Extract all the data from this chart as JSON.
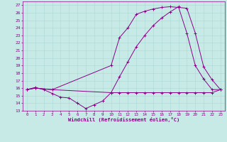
{
  "xlabel": "Windchill (Refroidissement éolien,°C)",
  "bg_color": "#c8eae6",
  "line_color": "#880088",
  "grid_color": "#aad8d4",
  "xlim": [
    -0.5,
    23.5
  ],
  "ylim": [
    13,
    27.5
  ],
  "xticks": [
    0,
    1,
    2,
    3,
    4,
    5,
    6,
    7,
    8,
    9,
    10,
    11,
    12,
    13,
    14,
    15,
    16,
    17,
    18,
    19,
    20,
    21,
    22,
    23
  ],
  "yticks": [
    13,
    14,
    15,
    16,
    17,
    18,
    19,
    20,
    21,
    22,
    23,
    24,
    25,
    26,
    27
  ],
  "series1_x": [
    0,
    1,
    2,
    3,
    4,
    5,
    6,
    7,
    8,
    9,
    10,
    11,
    12,
    13,
    14,
    15,
    16,
    17,
    18,
    19,
    20,
    21,
    22,
    23
  ],
  "series1_y": [
    15.8,
    16.1,
    15.8,
    15.3,
    14.8,
    14.7,
    14.0,
    13.3,
    13.8,
    14.3,
    15.4,
    15.4,
    15.4,
    15.4,
    15.4,
    15.4,
    15.4,
    15.4,
    15.4,
    15.4,
    15.4,
    15.4,
    15.4,
    15.8
  ],
  "series2_x": [
    0,
    1,
    3,
    10,
    11,
    12,
    13,
    14,
    15,
    16,
    17,
    18,
    19,
    20,
    21,
    22,
    23
  ],
  "series2_y": [
    15.8,
    16.0,
    15.8,
    19.0,
    22.7,
    24.0,
    25.8,
    26.2,
    26.5,
    26.7,
    26.8,
    26.7,
    26.6,
    23.3,
    18.8,
    17.1,
    15.8
  ],
  "series3_x": [
    0,
    1,
    3,
    10,
    11,
    12,
    13,
    14,
    15,
    16,
    17,
    18,
    19,
    20,
    21,
    22,
    23
  ],
  "series3_y": [
    15.8,
    16.0,
    15.8,
    15.4,
    17.5,
    19.5,
    21.5,
    23.0,
    24.3,
    25.3,
    26.1,
    26.8,
    23.3,
    19.0,
    17.2,
    15.8,
    15.8
  ]
}
